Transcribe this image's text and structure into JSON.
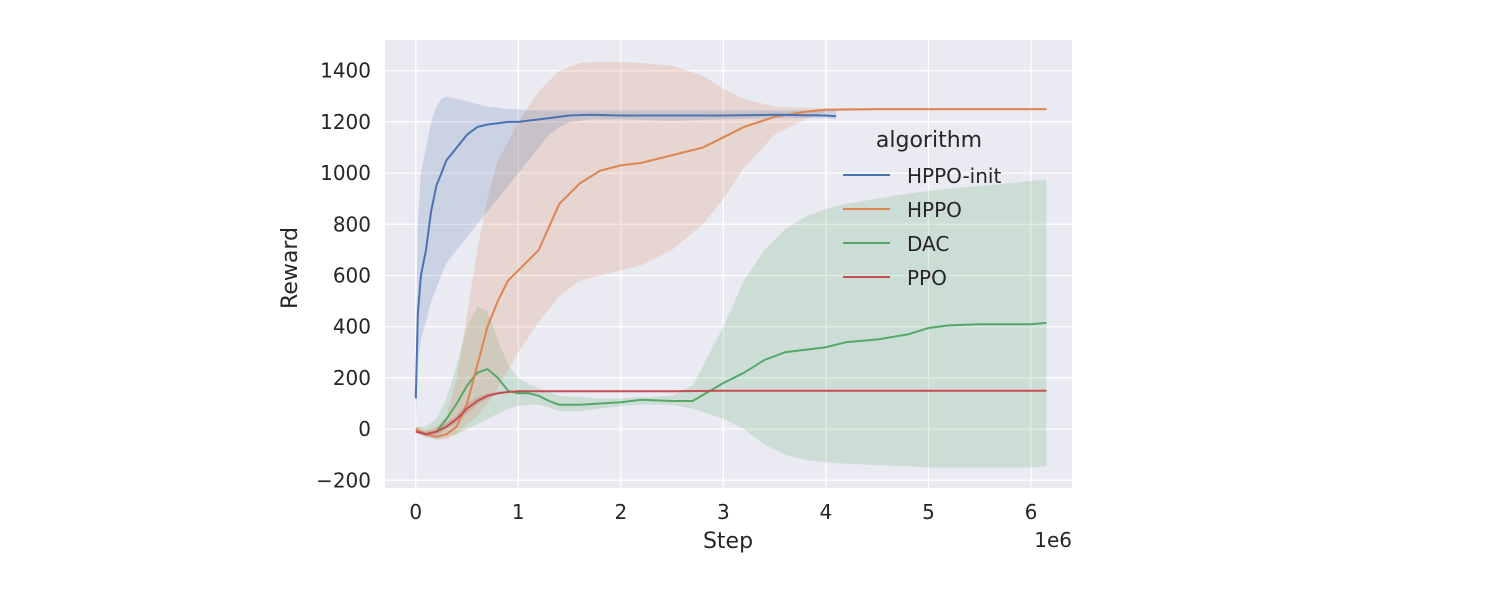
{
  "chart_data": {
    "type": "line",
    "xlabel": "Step",
    "ylabel": "Reward",
    "x_offset_label": "1e6",
    "xlim": [
      -0.3,
      6.4
    ],
    "ylim": [
      -230,
      1520
    ],
    "x_ticks": [
      0,
      1,
      2,
      3,
      4,
      5,
      6
    ],
    "x_tick_labels": [
      "0",
      "1",
      "2",
      "3",
      "4",
      "5",
      "6"
    ],
    "y_ticks": [
      -200,
      0,
      200,
      400,
      600,
      800,
      1000,
      1200,
      1400
    ],
    "y_tick_labels": [
      "−200",
      "0",
      "200",
      "400",
      "600",
      "800",
      "1000",
      "1200",
      "1400"
    ],
    "grid": true,
    "background": "#eaeaf2",
    "legend": {
      "title": "algorithm",
      "placement": "right"
    },
    "series": [
      {
        "name": "HPPO-init",
        "color": "#4c72b0",
        "x": [
          0,
          0.02,
          0.05,
          0.1,
          0.15,
          0.2,
          0.25,
          0.3,
          0.4,
          0.5,
          0.6,
          0.7,
          0.8,
          0.9,
          1.0,
          1.1,
          1.2,
          1.3,
          1.4,
          1.5,
          1.7,
          2.0,
          2.5,
          3.0,
          3.5,
          4.0,
          4.1
        ],
        "y": [
          120,
          450,
          600,
          700,
          850,
          950,
          1000,
          1050,
          1100,
          1150,
          1180,
          1190,
          1195,
          1200,
          1200,
          1205,
          1210,
          1215,
          1220,
          1225,
          1228,
          1225,
          1225,
          1225,
          1228,
          1225,
          1222
        ],
        "lower": [
          0,
          250,
          350,
          420,
          500,
          550,
          600,
          650,
          700,
          750,
          800,
          850,
          900,
          950,
          1000,
          1050,
          1100,
          1150,
          1180,
          1200,
          1210,
          1210,
          1205,
          1210,
          1215,
          1215,
          1210
        ],
        "upper": [
          200,
          800,
          1000,
          1100,
          1200,
          1260,
          1290,
          1300,
          1290,
          1280,
          1270,
          1260,
          1255,
          1250,
          1250,
          1245,
          1245,
          1245,
          1245,
          1245,
          1245,
          1245,
          1245,
          1245,
          1245,
          1245,
          1245
        ]
      },
      {
        "name": "HPPO",
        "color": "#dd8452",
        "x": [
          0,
          0.1,
          0.2,
          0.3,
          0.4,
          0.5,
          0.6,
          0.7,
          0.8,
          0.9,
          1.0,
          1.2,
          1.4,
          1.6,
          1.8,
          2.0,
          2.2,
          2.5,
          2.8,
          3.0,
          3.2,
          3.5,
          3.8,
          4.0,
          4.5,
          5.0,
          5.5,
          6.0,
          6.15
        ],
        "y": [
          0,
          -20,
          -30,
          -20,
          10,
          100,
          250,
          400,
          500,
          580,
          620,
          700,
          880,
          960,
          1010,
          1030,
          1040,
          1070,
          1100,
          1140,
          1180,
          1220,
          1240,
          1248,
          1250,
          1250,
          1250,
          1250,
          1250
        ],
        "lower": [
          -10,
          -30,
          -40,
          -40,
          -20,
          20,
          50,
          100,
          160,
          230,
          300,
          420,
          520,
          580,
          600,
          620,
          640,
          700,
          800,
          900,
          1020,
          1150,
          1210,
          1240,
          1245,
          1245,
          1245,
          1245,
          1245
        ],
        "upper": [
          10,
          0,
          10,
          50,
          200,
          450,
          700,
          900,
          1050,
          1120,
          1200,
          1320,
          1400,
          1430,
          1435,
          1435,
          1430,
          1420,
          1380,
          1330,
          1290,
          1260,
          1255,
          1252,
          1252,
          1252,
          1252,
          1252,
          1252
        ]
      },
      {
        "name": "DAC",
        "color": "#55a868",
        "x": [
          0,
          0.1,
          0.2,
          0.3,
          0.4,
          0.5,
          0.6,
          0.7,
          0.8,
          0.9,
          1.0,
          1.1,
          1.2,
          1.3,
          1.4,
          1.6,
          1.8,
          2.0,
          2.2,
          2.5,
          2.7,
          3.0,
          3.2,
          3.4,
          3.6,
          3.8,
          4.0,
          4.2,
          4.5,
          4.8,
          5.0,
          5.2,
          5.5,
          5.8,
          6.0,
          6.15
        ],
        "y": [
          0,
          -20,
          -10,
          40,
          100,
          170,
          220,
          235,
          200,
          150,
          140,
          140,
          130,
          110,
          95,
          95,
          100,
          105,
          115,
          110,
          110,
          180,
          220,
          270,
          300,
          310,
          320,
          340,
          350,
          370,
          395,
          405,
          410,
          410,
          410,
          415
        ],
        "lower": [
          -10,
          -30,
          -40,
          -30,
          -20,
          0,
          20,
          40,
          60,
          80,
          90,
          95,
          95,
          85,
          70,
          70,
          80,
          90,
          95,
          95,
          80,
          40,
          0,
          -60,
          -100,
          -120,
          -130,
          -135,
          -140,
          -145,
          -150,
          -150,
          -150,
          -150,
          -150,
          -145
        ],
        "upper": [
          10,
          10,
          40,
          120,
          250,
          400,
          480,
          460,
          350,
          250,
          200,
          175,
          160,
          145,
          130,
          125,
          120,
          120,
          125,
          130,
          170,
          400,
          580,
          700,
          780,
          830,
          860,
          880,
          900,
          920,
          930,
          940,
          950,
          960,
          970,
          975
        ]
      },
      {
        "name": "PPO",
        "color": "#c44e52",
        "x": [
          0,
          0.1,
          0.2,
          0.3,
          0.4,
          0.5,
          0.6,
          0.7,
          0.8,
          0.9,
          1.0,
          1.2,
          1.5,
          2.0,
          2.5,
          3.0,
          3.5,
          4.0,
          4.5,
          5.0,
          5.5,
          6.0,
          6.15
        ],
        "y": [
          -10,
          -20,
          -10,
          10,
          40,
          80,
          110,
          130,
          140,
          145,
          148,
          148,
          148,
          148,
          148,
          150,
          150,
          150,
          150,
          150,
          150,
          150,
          150
        ],
        "lower": [
          -15,
          -30,
          -25,
          0,
          25,
          60,
          95,
          120,
          135,
          140,
          143,
          145,
          146,
          146,
          146,
          147,
          147,
          147,
          147,
          147,
          147,
          147,
          147
        ],
        "upper": [
          -5,
          -10,
          5,
          25,
          55,
          100,
          125,
          140,
          148,
          150,
          152,
          152,
          152,
          152,
          152,
          153,
          153,
          153,
          153,
          153,
          153,
          153,
          153
        ]
      }
    ]
  }
}
